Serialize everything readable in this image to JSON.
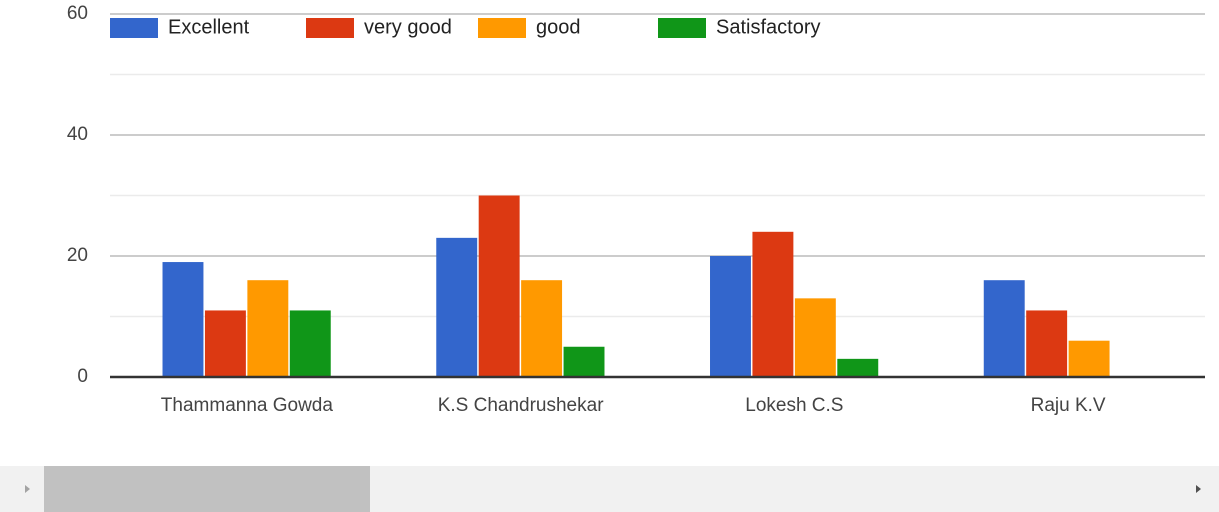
{
  "chart_data": {
    "type": "bar",
    "categories": [
      "Thammanna Gowda",
      "K.S Chandrushekar",
      "Lokesh C.S",
      "Raju K.V"
    ],
    "series": [
      {
        "name": "Excellent",
        "color": "#3366cc",
        "values": [
          19,
          23,
          20,
          16
        ]
      },
      {
        "name": "very good",
        "color": "#dc3912",
        "values": [
          11,
          30,
          24,
          11
        ]
      },
      {
        "name": "good",
        "color": "#ff9900",
        "values": [
          16,
          16,
          13,
          6
        ]
      },
      {
        "name": "Satisfactory",
        "color": "#109618",
        "values": [
          11,
          5,
          3,
          0
        ]
      }
    ],
    "ylim": [
      0,
      60
    ],
    "yticks": [
      0,
      20,
      40,
      60
    ],
    "minor_yticks": [
      10,
      30,
      50
    ],
    "grid": true,
    "legend": "top"
  }
}
